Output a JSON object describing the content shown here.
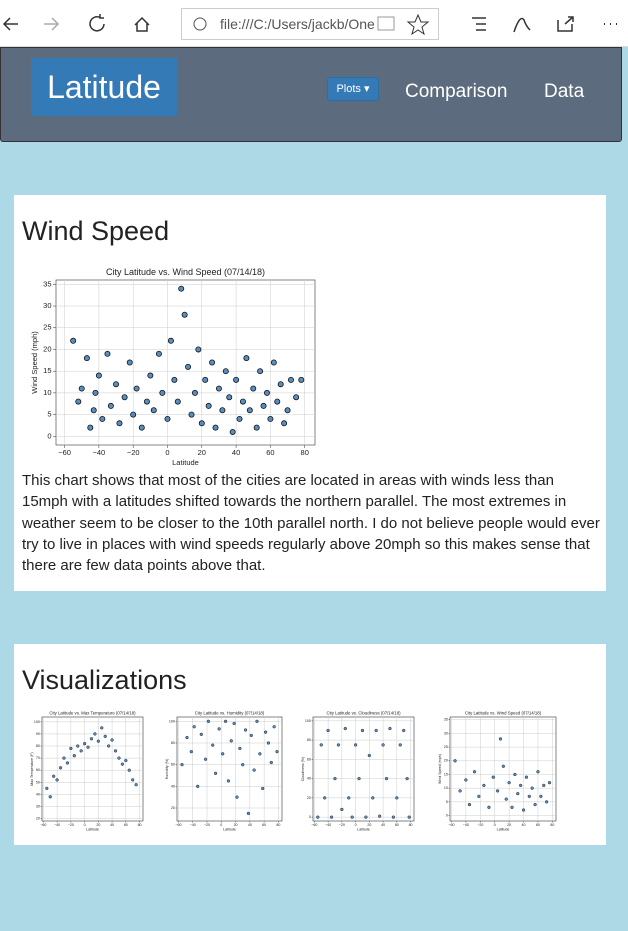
{
  "browser": {
    "url": "file:///C:/Users/jackb/One"
  },
  "nav": {
    "brand": "Latitude",
    "dropdown": "Plots",
    "links": [
      "Comparison",
      "Data"
    ]
  },
  "sections": [
    {
      "heading": "Wind Speed",
      "text": "This chart shows that most of the cities are located in areas with winds less than 15mph with a latitudes shifted towards the northern parallel. The most extremes in weather seem to be closer to the 10th parallel north. I do not believe people would ever try to live in places with wind speeds regularly above 20mph so this makes sense that there are few data points above that."
    },
    {
      "heading": "Visualizations"
    }
  ],
  "chart_data": [
    {
      "type": "scatter",
      "title": "City Latitude vs. Wind Speed (07/14/18)",
      "x_label": "Latitude",
      "y_label": "Wind Speed (mph)",
      "color": "#3b7bb5",
      "grid": true,
      "xlim": [
        -65,
        86
      ],
      "ylim": [
        -2,
        36
      ],
      "xticks": [
        {
          "value": -60,
          "label": "−60"
        },
        {
          "value": -40,
          "label": "−40"
        },
        {
          "value": -20,
          "label": "−20"
        },
        0,
        20,
        40,
        60,
        80
      ],
      "yticks": [
        0,
        5,
        10,
        15,
        20,
        25,
        30,
        35
      ],
      "x": [
        -55,
        -52,
        -50,
        -47,
        -45,
        -43,
        -42,
        -40,
        -38,
        -35,
        -33,
        -30,
        -28,
        -25,
        -22,
        -20,
        -18,
        -15,
        -12,
        -10,
        -8,
        -5,
        -3,
        0,
        2,
        4,
        6,
        8,
        10,
        12,
        14,
        16,
        18,
        20,
        22,
        24,
        26,
        28,
        30,
        32,
        34,
        36,
        38,
        40,
        42,
        44,
        46,
        48,
        50,
        52,
        54,
        56,
        58,
        60,
        62,
        64,
        66,
        68,
        70,
        72,
        75,
        78
      ],
      "values": [
        22,
        8,
        11,
        18,
        2,
        6,
        10,
        14,
        4,
        19,
        7,
        12,
        3,
        9,
        17,
        5,
        11,
        2,
        8,
        14,
        6,
        19,
        10,
        4,
        22,
        13,
        8,
        34,
        28,
        16,
        5,
        10,
        20,
        3,
        13,
        7,
        17,
        2,
        11,
        6,
        15,
        9,
        1,
        13,
        4,
        8,
        18,
        6,
        11,
        2,
        15,
        7,
        10,
        4,
        17,
        8,
        12,
        3,
        6,
        13,
        9,
        13
      ]
    },
    {
      "type": "scatter",
      "title": "City Latitude vs. Max Temperature (07/14/18)",
      "x_label": "Latitude",
      "y_label": "Max Temperature (F)",
      "color": "#3b7bb5",
      "grid": true,
      "xlim": [
        -62,
        85
      ],
      "ylim": [
        18,
        104
      ],
      "xticks": [
        {
          "value": -60,
          "label": "−60"
        },
        {
          "value": -40,
          "label": "−40"
        },
        {
          "value": -20,
          "label": "−20"
        },
        0,
        20,
        40,
        60,
        80
      ],
      "yticks": [
        20,
        30,
        40,
        50,
        60,
        70,
        80,
        90,
        100
      ],
      "x": [
        -55,
        -50,
        -45,
        -40,
        -35,
        -30,
        -25,
        -20,
        -15,
        -10,
        -5,
        0,
        5,
        10,
        15,
        20,
        25,
        30,
        35,
        40,
        45,
        50,
        55,
        60,
        65,
        70,
        75
      ],
      "values": [
        45,
        38,
        55,
        52,
        62,
        70,
        66,
        78,
        72,
        80,
        76,
        82,
        79,
        86,
        90,
        84,
        95,
        88,
        80,
        85,
        76,
        70,
        65,
        68,
        60,
        52,
        48
      ]
    },
    {
      "type": "scatter",
      "title": "City Latitude vs. Humidity (07/14/18)",
      "x_label": "Latitude",
      "y_label": "Humidity (%)",
      "color": "#3b7bb5",
      "grid": true,
      "xlim": [
        -62,
        85
      ],
      "ylim": [
        8,
        104
      ],
      "xticks": [
        {
          "value": -60,
          "label": "−60"
        },
        {
          "value": -40,
          "label": "−40"
        },
        {
          "value": -20,
          "label": "−20"
        },
        0,
        20,
        40,
        60,
        80
      ],
      "yticks": [
        20,
        40,
        60,
        80,
        100
      ],
      "x": [
        -55,
        -48,
        -42,
        -38,
        -33,
        -28,
        -22,
        -18,
        -12,
        -8,
        -3,
        2,
        6,
        10,
        14,
        18,
        22,
        26,
        30,
        34,
        38,
        42,
        46,
        50,
        54,
        58,
        62,
        66,
        70,
        74,
        78
      ],
      "values": [
        60,
        85,
        72,
        95,
        40,
        88,
        65,
        100,
        78,
        52,
        93,
        70,
        100,
        45,
        82,
        98,
        30,
        75,
        60,
        92,
        15,
        87,
        55,
        100,
        70,
        38,
        90,
        80,
        62,
        95,
        72
      ]
    },
    {
      "type": "scatter",
      "title": "City Latitude vs. Cloudiness (07/14/18)",
      "x_label": "Latitude",
      "y_label": "Cloudiness (%)",
      "color": "#3b7bb5",
      "grid": true,
      "xlim": [
        -62,
        85
      ],
      "ylim": [
        -4,
        104
      ],
      "xticks": [
        {
          "value": -60,
          "label": "−60"
        },
        {
          "value": -40,
          "label": "−40"
        },
        {
          "value": -20,
          "label": "−20"
        },
        0,
        20,
        40,
        60,
        80
      ],
      "yticks": [
        0,
        20,
        40,
        60,
        80,
        100
      ],
      "x": [
        -55,
        -50,
        -45,
        -40,
        -35,
        -30,
        -25,
        -20,
        -15,
        -10,
        -5,
        0,
        5,
        10,
        15,
        20,
        25,
        30,
        35,
        40,
        45,
        50,
        55,
        60,
        65,
        70,
        75,
        78
      ],
      "values": [
        0,
        75,
        20,
        90,
        0,
        40,
        75,
        8,
        92,
        20,
        0,
        75,
        40,
        90,
        0,
        64,
        20,
        90,
        1,
        75,
        40,
        92,
        0,
        20,
        75,
        90,
        40,
        0
      ]
    },
    {
      "type": "scatter",
      "title": "City Latitude vs. Wind Speed (07/14/18)",
      "x_label": "Latitude",
      "y_label": "Wind Speed (mph)",
      "color": "#3b7bb5",
      "grid": true,
      "xlim": [
        -62,
        85
      ],
      "ylim": [
        -2,
        36
      ],
      "xticks": [
        {
          "value": -60,
          "label": "−60"
        },
        {
          "value": -40,
          "label": "−40"
        },
        {
          "value": -20,
          "label": "−20"
        },
        0,
        20,
        40,
        60,
        80
      ],
      "yticks": [
        0,
        5,
        10,
        15,
        20,
        25,
        30,
        35
      ],
      "x": [
        -55,
        -48,
        -40,
        -35,
        -28,
        -22,
        -15,
        -8,
        -2,
        4,
        8,
        12,
        16,
        20,
        24,
        28,
        32,
        36,
        40,
        44,
        48,
        52,
        56,
        60,
        64,
        68,
        72,
        76
      ],
      "values": [
        20,
        9,
        13,
        4,
        16,
        7,
        11,
        3,
        14,
        9,
        28,
        18,
        6,
        12,
        3,
        15,
        8,
        11,
        2,
        14,
        7,
        10,
        4,
        16,
        7,
        11,
        5,
        12
      ]
    }
  ]
}
